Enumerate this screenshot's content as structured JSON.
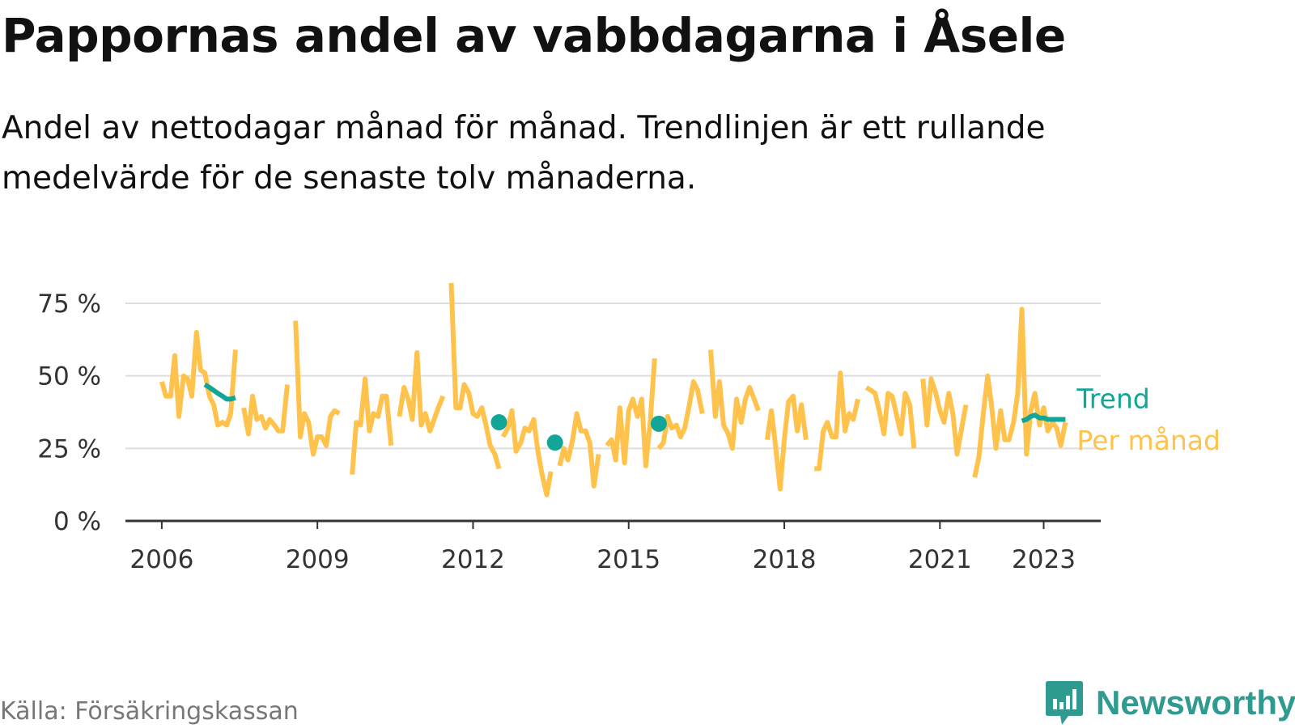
{
  "title": "Pappornas andel av vabbdagarna i Åsele",
  "subtitle": "Andel av nettodagar månad för månad. Trendlinjen är ett rullande medelvärde för de senaste tolv månaderna.",
  "source": "Källa: Försäkringskassan",
  "brand": "Newsworthy",
  "colors": {
    "trend": "#13a596",
    "monthly": "#ffc34d",
    "grid": "#dddddd",
    "axis": "#333333",
    "brand": "#2f9a8f"
  },
  "icons": {
    "brand_logo": "newsworthy-chat-bar-icon"
  },
  "chart_data": {
    "type": "line",
    "x_unit": "year",
    "xlim": [
      2005.3,
      2024.1
    ],
    "ylim": [
      0,
      75
    ],
    "yticks": [
      0,
      25,
      50,
      75
    ],
    "ytick_labels": [
      "0 %",
      "25 %",
      "50 %",
      "75 %"
    ],
    "xticks": [
      2006,
      2009,
      2012,
      2015,
      2018,
      2021,
      2023
    ],
    "xtick_labels": [
      "2006",
      "2009",
      "2012",
      "2015",
      "2018",
      "2021",
      "2023"
    ],
    "grid": "horizontal",
    "legend_position": "right-end",
    "series": [
      {
        "name": "Per månad",
        "color": "#ffc34d",
        "segments": [
          [
            [
              2006.0,
              48
            ],
            [
              2006.08,
              43
            ],
            [
              2006.17,
              43
            ],
            [
              2006.25,
              57
            ],
            [
              2006.33,
              36
            ],
            [
              2006.42,
              50
            ],
            [
              2006.5,
              49
            ],
            [
              2006.58,
              43
            ],
            [
              2006.67,
              65
            ],
            [
              2006.75,
              52
            ],
            [
              2006.83,
              51
            ],
            [
              2006.92,
              43
            ],
            [
              2007.0,
              40
            ],
            [
              2007.08,
              33
            ],
            [
              2007.17,
              34
            ],
            [
              2007.25,
              33
            ],
            [
              2007.33,
              37
            ],
            [
              2007.42,
              59
            ]
          ],
          [
            [
              2007.58,
              39
            ],
            [
              2007.67,
              30
            ],
            [
              2007.75,
              43
            ],
            [
              2007.83,
              35
            ],
            [
              2007.92,
              36
            ],
            [
              2008.0,
              32
            ],
            [
              2008.08,
              35
            ],
            [
              2008.17,
              33
            ],
            [
              2008.25,
              31
            ],
            [
              2008.33,
              31
            ],
            [
              2008.42,
              47
            ]
          ],
          [
            [
              2008.58,
              69
            ],
            [
              2008.67,
              29
            ],
            [
              2008.75,
              37
            ],
            [
              2008.83,
              34
            ],
            [
              2008.92,
              23
            ],
            [
              2009.0,
              29
            ],
            [
              2009.08,
              29
            ],
            [
              2009.17,
              26
            ],
            [
              2009.25,
              36
            ],
            [
              2009.33,
              38
            ],
            [
              2009.42,
              37
            ]
          ],
          [
            [
              2009.67,
              16
            ],
            [
              2009.75,
              34
            ],
            [
              2009.83,
              33
            ],
            [
              2009.92,
              49
            ],
            [
              2010.0,
              31
            ],
            [
              2010.08,
              37
            ],
            [
              2010.17,
              36
            ],
            [
              2010.25,
              43
            ],
            [
              2010.33,
              43
            ],
            [
              2010.42,
              26
            ]
          ],
          [
            [
              2010.58,
              36
            ],
            [
              2010.67,
              46
            ],
            [
              2010.75,
              42
            ],
            [
              2010.83,
              35
            ],
            [
              2010.92,
              58
            ],
            [
              2011.0,
              33
            ],
            [
              2011.08,
              37
            ],
            [
              2011.17,
              31
            ],
            [
              2011.25,
              35
            ],
            [
              2011.33,
              39
            ],
            [
              2011.42,
              43
            ]
          ],
          [
            [
              2011.58,
              82
            ],
            [
              2011.67,
              39
            ],
            [
              2011.75,
              39
            ],
            [
              2011.83,
              47
            ],
            [
              2011.92,
              44
            ],
            [
              2012.0,
              37
            ],
            [
              2012.08,
              36
            ],
            [
              2012.17,
              39
            ],
            [
              2012.25,
              33
            ],
            [
              2012.33,
              26
            ],
            [
              2012.42,
              23
            ],
            [
              2012.5,
              18
            ]
          ],
          [
            [
              2012.58,
              29
            ],
            [
              2012.67,
              32
            ],
            [
              2012.75,
              38
            ],
            [
              2012.83,
              24
            ],
            [
              2012.92,
              27
            ],
            [
              2013.0,
              32
            ],
            [
              2013.08,
              31
            ],
            [
              2013.17,
              35
            ],
            [
              2013.25,
              24
            ],
            [
              2013.33,
              16
            ],
            [
              2013.42,
              9
            ],
            [
              2013.5,
              17
            ]
          ],
          [
            [
              2013.67,
              19
            ],
            [
              2013.75,
              25
            ],
            [
              2013.83,
              21
            ],
            [
              2013.92,
              28
            ],
            [
              2014.0,
              37
            ],
            [
              2014.08,
              31
            ],
            [
              2014.17,
              31
            ],
            [
              2014.25,
              27
            ],
            [
              2014.33,
              12
            ],
            [
              2014.42,
              23
            ]
          ],
          [
            [
              2014.58,
              26
            ],
            [
              2014.67,
              28
            ],
            [
              2014.75,
              21
            ],
            [
              2014.83,
              39
            ],
            [
              2014.92,
              20
            ],
            [
              2015.0,
              38
            ],
            [
              2015.08,
              42
            ],
            [
              2015.17,
              36
            ],
            [
              2015.25,
              42
            ],
            [
              2015.33,
              19
            ],
            [
              2015.42,
              35
            ],
            [
              2015.5,
              56
            ]
          ],
          [
            [
              2015.58,
              25
            ],
            [
              2015.67,
              27
            ],
            [
              2015.75,
              36
            ],
            [
              2015.83,
              32
            ],
            [
              2015.92,
              33
            ],
            [
              2016.0,
              29
            ],
            [
              2016.08,
              32
            ],
            [
              2016.17,
              40
            ],
            [
              2016.25,
              48
            ],
            [
              2016.33,
              45
            ],
            [
              2016.42,
              37
            ]
          ],
          [
            [
              2016.58,
              59
            ],
            [
              2016.67,
              36
            ],
            [
              2016.75,
              48
            ],
            [
              2016.83,
              33
            ],
            [
              2016.92,
              30
            ],
            [
              2017.0,
              25
            ],
            [
              2017.08,
              42
            ],
            [
              2017.17,
              34
            ],
            [
              2017.25,
              42
            ],
            [
              2017.33,
              46
            ],
            [
              2017.42,
              42
            ],
            [
              2017.5,
              38
            ]
          ],
          [
            [
              2017.67,
              28
            ],
            [
              2017.75,
              38
            ],
            [
              2017.83,
              26
            ],
            [
              2017.92,
              11
            ],
            [
              2018.0,
              28
            ],
            [
              2018.08,
              41
            ],
            [
              2018.17,
              43
            ],
            [
              2018.25,
              31
            ],
            [
              2018.33,
              40
            ],
            [
              2018.42,
              28
            ]
          ],
          [
            [
              2018.58,
              18
            ],
            [
              2018.67,
              18
            ],
            [
              2018.75,
              31
            ],
            [
              2018.83,
              34
            ],
            [
              2018.92,
              29
            ],
            [
              2019.0,
              29
            ],
            [
              2019.08,
              51
            ],
            [
              2019.17,
              31
            ],
            [
              2019.25,
              37
            ],
            [
              2019.33,
              35
            ],
            [
              2019.42,
              42
            ]
          ],
          [
            [
              2019.58,
              46
            ],
            [
              2019.67,
              45
            ],
            [
              2019.75,
              44
            ],
            [
              2019.83,
              38
            ],
            [
              2019.92,
              30
            ],
            [
              2020.0,
              44
            ],
            [
              2020.08,
              43
            ],
            [
              2020.17,
              36
            ],
            [
              2020.25,
              30
            ],
            [
              2020.33,
              44
            ],
            [
              2020.42,
              40
            ],
            [
              2020.5,
              25
            ]
          ],
          [
            [
              2020.67,
              49
            ],
            [
              2020.75,
              33
            ],
            [
              2020.83,
              49
            ],
            [
              2020.92,
              44
            ],
            [
              2021.0,
              38
            ],
            [
              2021.08,
              34
            ],
            [
              2021.17,
              44
            ],
            [
              2021.25,
              37
            ],
            [
              2021.33,
              23
            ],
            [
              2021.42,
              32
            ],
            [
              2021.5,
              40
            ]
          ],
          [
            [
              2021.67,
              15
            ],
            [
              2021.75,
              22
            ],
            [
              2021.83,
              36
            ],
            [
              2021.92,
              50
            ],
            [
              2022.0,
              39
            ],
            [
              2022.08,
              25
            ],
            [
              2022.17,
              38
            ],
            [
              2022.25,
              28
            ],
            [
              2022.33,
              28
            ],
            [
              2022.42,
              34
            ],
            [
              2022.5,
              44
            ],
            [
              2022.58,
              73
            ],
            [
              2022.67,
              23
            ],
            [
              2022.75,
              38
            ],
            [
              2022.83,
              44
            ],
            [
              2022.92,
              33
            ],
            [
              2023.0,
              39
            ],
            [
              2023.08,
              31
            ],
            [
              2023.17,
              34
            ],
            [
              2023.25,
              32
            ],
            [
              2023.33,
              26
            ],
            [
              2023.42,
              34
            ]
          ]
        ]
      },
      {
        "name": "Trend",
        "color": "#13a596",
        "segments": [
          [
            [
              2006.83,
              47
            ],
            [
              2006.92,
              46
            ],
            [
              2007.0,
              45
            ],
            [
              2007.08,
              44
            ],
            [
              2007.17,
              43
            ],
            [
              2007.25,
              42
            ],
            [
              2007.33,
              42
            ],
            [
              2007.42,
              42.5
            ]
          ],
          [
            [
              2012.5,
              34
            ]
          ],
          [
            [
              2013.58,
              27
            ]
          ],
          [
            [
              2015.58,
              33.5
            ]
          ],
          [
            [
              2022.58,
              34.5
            ],
            [
              2022.67,
              35
            ],
            [
              2022.75,
              36
            ],
            [
              2022.83,
              36.5
            ],
            [
              2022.92,
              35.5
            ],
            [
              2023.0,
              35.5
            ],
            [
              2023.08,
              35
            ],
            [
              2023.17,
              35
            ],
            [
              2023.25,
              35
            ],
            [
              2023.33,
              35
            ],
            [
              2023.42,
              35
            ]
          ]
        ]
      }
    ]
  }
}
